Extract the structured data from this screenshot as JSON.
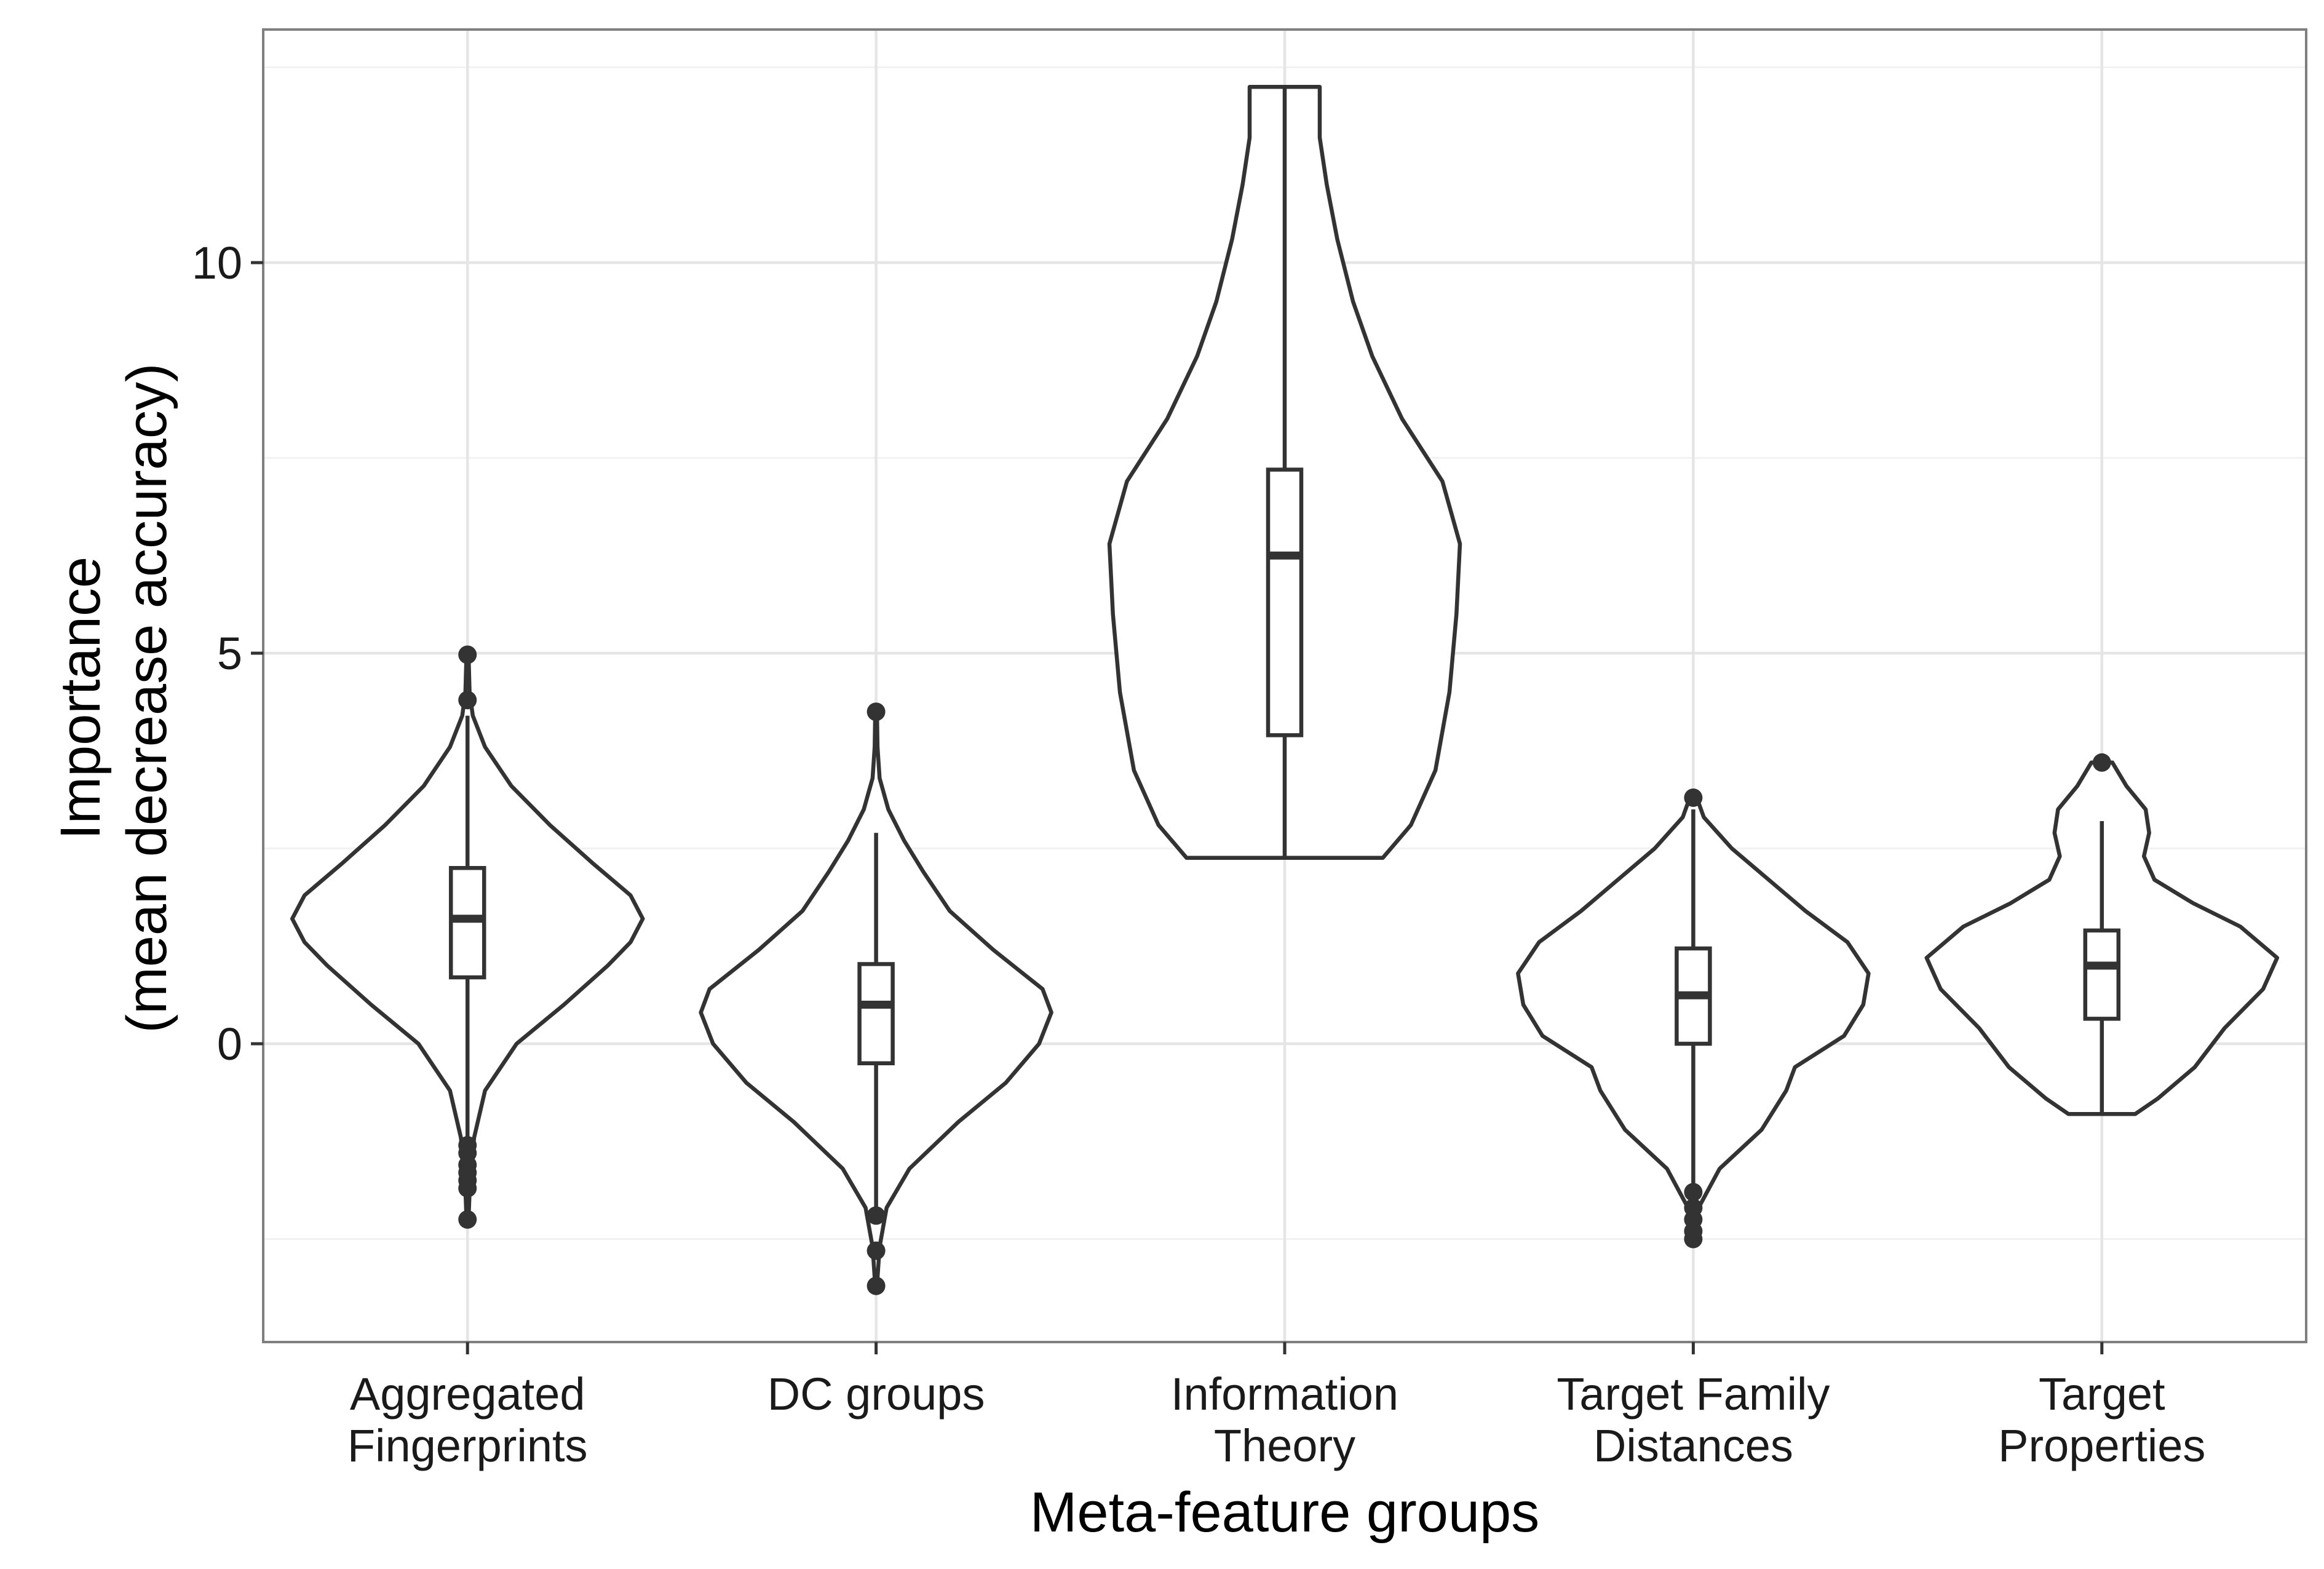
{
  "chart_data": {
    "type": "violin",
    "title": "",
    "xlabel": "Meta-feature groups",
    "ylabel_lines": [
      "Importance",
      "(mean decrease accuracy)"
    ],
    "ylim": [
      -3.85,
      13.0
    ],
    "yticks": [
      0,
      5,
      10
    ],
    "grid": true,
    "legend": "none",
    "colors": {
      "outline": "#333333",
      "grid": "#e5e5e5",
      "panel_border": "#7f7f7f",
      "fill": "#ffffff"
    },
    "categories": [
      {
        "label_lines": [
          "Aggregated",
          "Fingerprints"
        ]
      },
      {
        "label_lines": [
          "DC groups"
        ]
      },
      {
        "label_lines": [
          "Information",
          "Theory"
        ]
      },
      {
        "label_lines": [
          "Target Family",
          "Distances"
        ]
      },
      {
        "label_lines": [
          "Target",
          "Properties"
        ]
      }
    ],
    "series": [
      {
        "min": -2.25,
        "max": 4.98,
        "box": {
          "q1": 0.85,
          "median": 1.6,
          "q3": 2.25,
          "whisker_low": -1.3,
          "whisker_high": 4.2
        },
        "outliers": [
          4.98,
          4.4,
          -1.3,
          -1.4,
          -1.55,
          -1.65,
          -1.75,
          -1.85,
          -2.25
        ],
        "density": [
          [
            -2.25,
            0.006
          ],
          [
            -2.0,
            0.01
          ],
          [
            -1.7,
            0.015
          ],
          [
            -1.2,
            0.038
          ],
          [
            -0.6,
            0.1
          ],
          [
            0.0,
            0.28
          ],
          [
            0.5,
            0.55
          ],
          [
            1.0,
            0.8
          ],
          [
            1.3,
            0.93
          ],
          [
            1.6,
            1.0
          ],
          [
            1.9,
            0.93
          ],
          [
            2.3,
            0.72
          ],
          [
            2.8,
            0.47
          ],
          [
            3.3,
            0.25
          ],
          [
            3.8,
            0.1
          ],
          [
            4.2,
            0.03
          ],
          [
            4.5,
            0.012
          ],
          [
            4.98,
            0.006
          ]
        ]
      },
      {
        "min": -3.1,
        "max": 4.25,
        "box": {
          "q1": -0.25,
          "median": 0.5,
          "q3": 1.02,
          "whisker_low": -2.2,
          "whisker_high": 2.7
        },
        "outliers": [
          4.25,
          -2.2,
          -2.65,
          -3.1
        ],
        "density": [
          [
            -3.1,
            0.005
          ],
          [
            -2.6,
            0.02
          ],
          [
            -2.1,
            0.06
          ],
          [
            -1.6,
            0.19
          ],
          [
            -1.0,
            0.47
          ],
          [
            -0.5,
            0.74
          ],
          [
            0.0,
            0.93
          ],
          [
            0.4,
            1.0
          ],
          [
            0.7,
            0.95
          ],
          [
            1.2,
            0.67
          ],
          [
            1.7,
            0.42
          ],
          [
            2.2,
            0.27
          ],
          [
            2.6,
            0.16
          ],
          [
            3.0,
            0.07
          ],
          [
            3.4,
            0.02
          ],
          [
            3.8,
            0.008
          ],
          [
            4.25,
            0.005
          ]
        ]
      },
      {
        "min": 2.38,
        "max": 12.25,
        "box": {
          "q1": 3.95,
          "median": 6.25,
          "q3": 7.35,
          "whisker_low": 2.38,
          "whisker_high": 12.25
        },
        "outliers": [],
        "density": [
          [
            2.38,
            0.56
          ],
          [
            2.8,
            0.72
          ],
          [
            3.5,
            0.86
          ],
          [
            4.5,
            0.94
          ],
          [
            5.5,
            0.98
          ],
          [
            6.4,
            1.0
          ],
          [
            7.2,
            0.9
          ],
          [
            8.0,
            0.67
          ],
          [
            8.8,
            0.5
          ],
          [
            9.5,
            0.39
          ],
          [
            10.3,
            0.3
          ],
          [
            11.0,
            0.24
          ],
          [
            11.6,
            0.2
          ],
          [
            12.25,
            0.2
          ]
        ]
      },
      {
        "min": -2.5,
        "max": 3.15,
        "box": {
          "q1": 0.0,
          "median": 0.62,
          "q3": 1.22,
          "whisker_low": -1.9,
          "whisker_high": 3.0
        },
        "outliers": [
          3.15,
          -1.9,
          -2.1,
          -2.25,
          -2.4,
          -2.5
        ],
        "density": [
          [
            -2.5,
            0.008
          ],
          [
            -2.1,
            0.03
          ],
          [
            -1.6,
            0.15
          ],
          [
            -1.1,
            0.39
          ],
          [
            -0.6,
            0.53
          ],
          [
            -0.3,
            0.58
          ],
          [
            0.1,
            0.86
          ],
          [
            0.5,
            0.97
          ],
          [
            0.9,
            1.0
          ],
          [
            1.3,
            0.88
          ],
          [
            1.7,
            0.64
          ],
          [
            2.1,
            0.43
          ],
          [
            2.5,
            0.22
          ],
          [
            2.9,
            0.06
          ],
          [
            3.15,
            0.02
          ]
        ]
      },
      {
        "min": -0.9,
        "max": 3.6,
        "box": {
          "q1": 0.32,
          "median": 1.0,
          "q3": 1.45,
          "whisker_low": -0.9,
          "whisker_high": 2.85
        },
        "outliers": [
          3.6
        ],
        "density": [
          [
            -0.9,
            0.19
          ],
          [
            -0.7,
            0.32
          ],
          [
            -0.3,
            0.53
          ],
          [
            0.2,
            0.7
          ],
          [
            0.7,
            0.92
          ],
          [
            1.1,
            1.0
          ],
          [
            1.5,
            0.79
          ],
          [
            1.8,
            0.52
          ],
          [
            2.1,
            0.3
          ],
          [
            2.4,
            0.24
          ],
          [
            2.7,
            0.27
          ],
          [
            3.0,
            0.25
          ],
          [
            3.3,
            0.14
          ],
          [
            3.6,
            0.06
          ]
        ]
      }
    ]
  }
}
